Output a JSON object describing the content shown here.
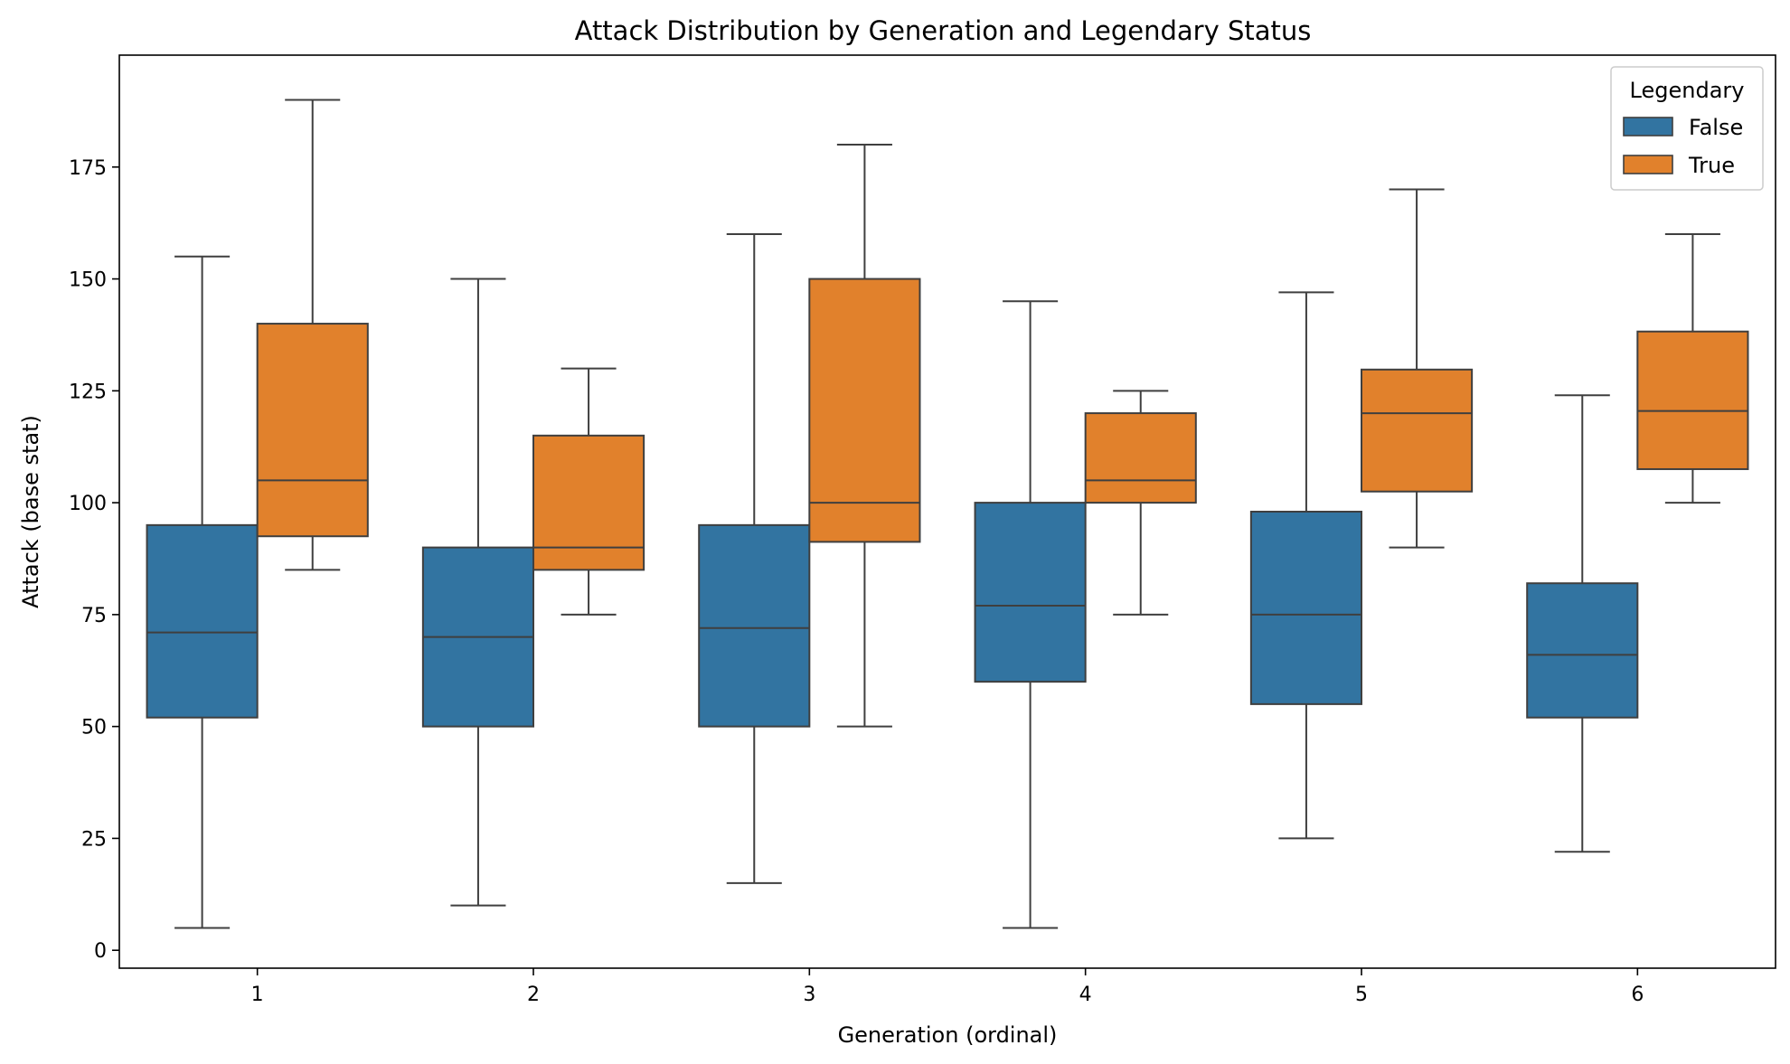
{
  "chart_data": {
    "type": "box",
    "title": "Attack Distribution by Generation and Legendary Status",
    "xlabel": "Generation (ordinal)",
    "ylabel": "Attack (base stat)",
    "ylim": [
      -4,
      200
    ],
    "yticks": [
      0,
      25,
      50,
      75,
      100,
      125,
      150,
      175
    ],
    "grid": false,
    "categories": [
      "1",
      "2",
      "3",
      "4",
      "5",
      "6"
    ],
    "legend": {
      "title": "Legendary",
      "placement": "top-right",
      "entries": [
        "False",
        "True"
      ]
    },
    "series": [
      {
        "name": "False",
        "color": "#3274a1",
        "boxes": [
          {
            "whislo": 5,
            "q1": 52,
            "med": 71,
            "q3": 95,
            "whishi": 155
          },
          {
            "whislo": 10,
            "q1": 50,
            "med": 70,
            "q3": 90,
            "whishi": 150
          },
          {
            "whislo": 15,
            "q1": 50,
            "med": 72,
            "q3": 95,
            "whishi": 160
          },
          {
            "whislo": 5,
            "q1": 60,
            "med": 77,
            "q3": 100,
            "whishi": 145
          },
          {
            "whislo": 25,
            "q1": 55,
            "med": 75,
            "q3": 98,
            "whishi": 147
          },
          {
            "whislo": 22,
            "q1": 52,
            "med": 66,
            "q3": 82,
            "whishi": 124
          }
        ]
      },
      {
        "name": "True",
        "color": "#e1812c",
        "boxes": [
          {
            "whislo": 85,
            "q1": 92.5,
            "med": 105,
            "q3": 140,
            "whishi": 190
          },
          {
            "whislo": 75,
            "q1": 85,
            "med": 90,
            "q3": 115,
            "whishi": 130
          },
          {
            "whislo": 50,
            "q1": 91.25,
            "med": 100,
            "q3": 150,
            "whishi": 180
          },
          {
            "whislo": 75,
            "q1": 100,
            "med": 105,
            "q3": 120,
            "whishi": 125
          },
          {
            "whislo": 90,
            "q1": 102.5,
            "med": 120,
            "q3": 129.75,
            "whishi": 170
          },
          {
            "whislo": 100,
            "q1": 107.5,
            "med": 120.5,
            "q3": 138.25,
            "whishi": 160
          }
        ]
      }
    ]
  }
}
